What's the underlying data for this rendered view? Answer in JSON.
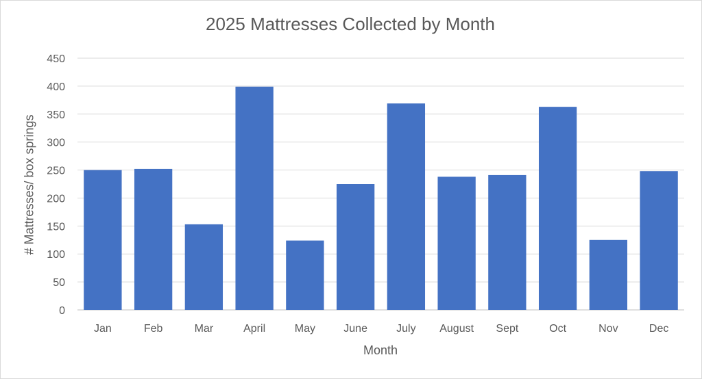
{
  "chart_data": {
    "type": "bar",
    "title": "2025 Mattresses Collected by Month",
    "xlabel": "Month",
    "ylabel": "# Mattresses/ box springs",
    "categories": [
      "Jan",
      "Feb",
      "Mar",
      "April",
      "May",
      "June",
      "July",
      "August",
      "Sept",
      "Oct",
      "Nov",
      "Dec"
    ],
    "values": [
      250,
      252,
      153,
      399,
      124,
      225,
      369,
      238,
      241,
      363,
      125,
      248
    ],
    "ylim": [
      0,
      450
    ],
    "yticks": [
      0,
      50,
      100,
      150,
      200,
      250,
      300,
      350,
      400,
      450
    ],
    "grid": true,
    "legend": "none",
    "bar_color": "#4472C4"
  }
}
